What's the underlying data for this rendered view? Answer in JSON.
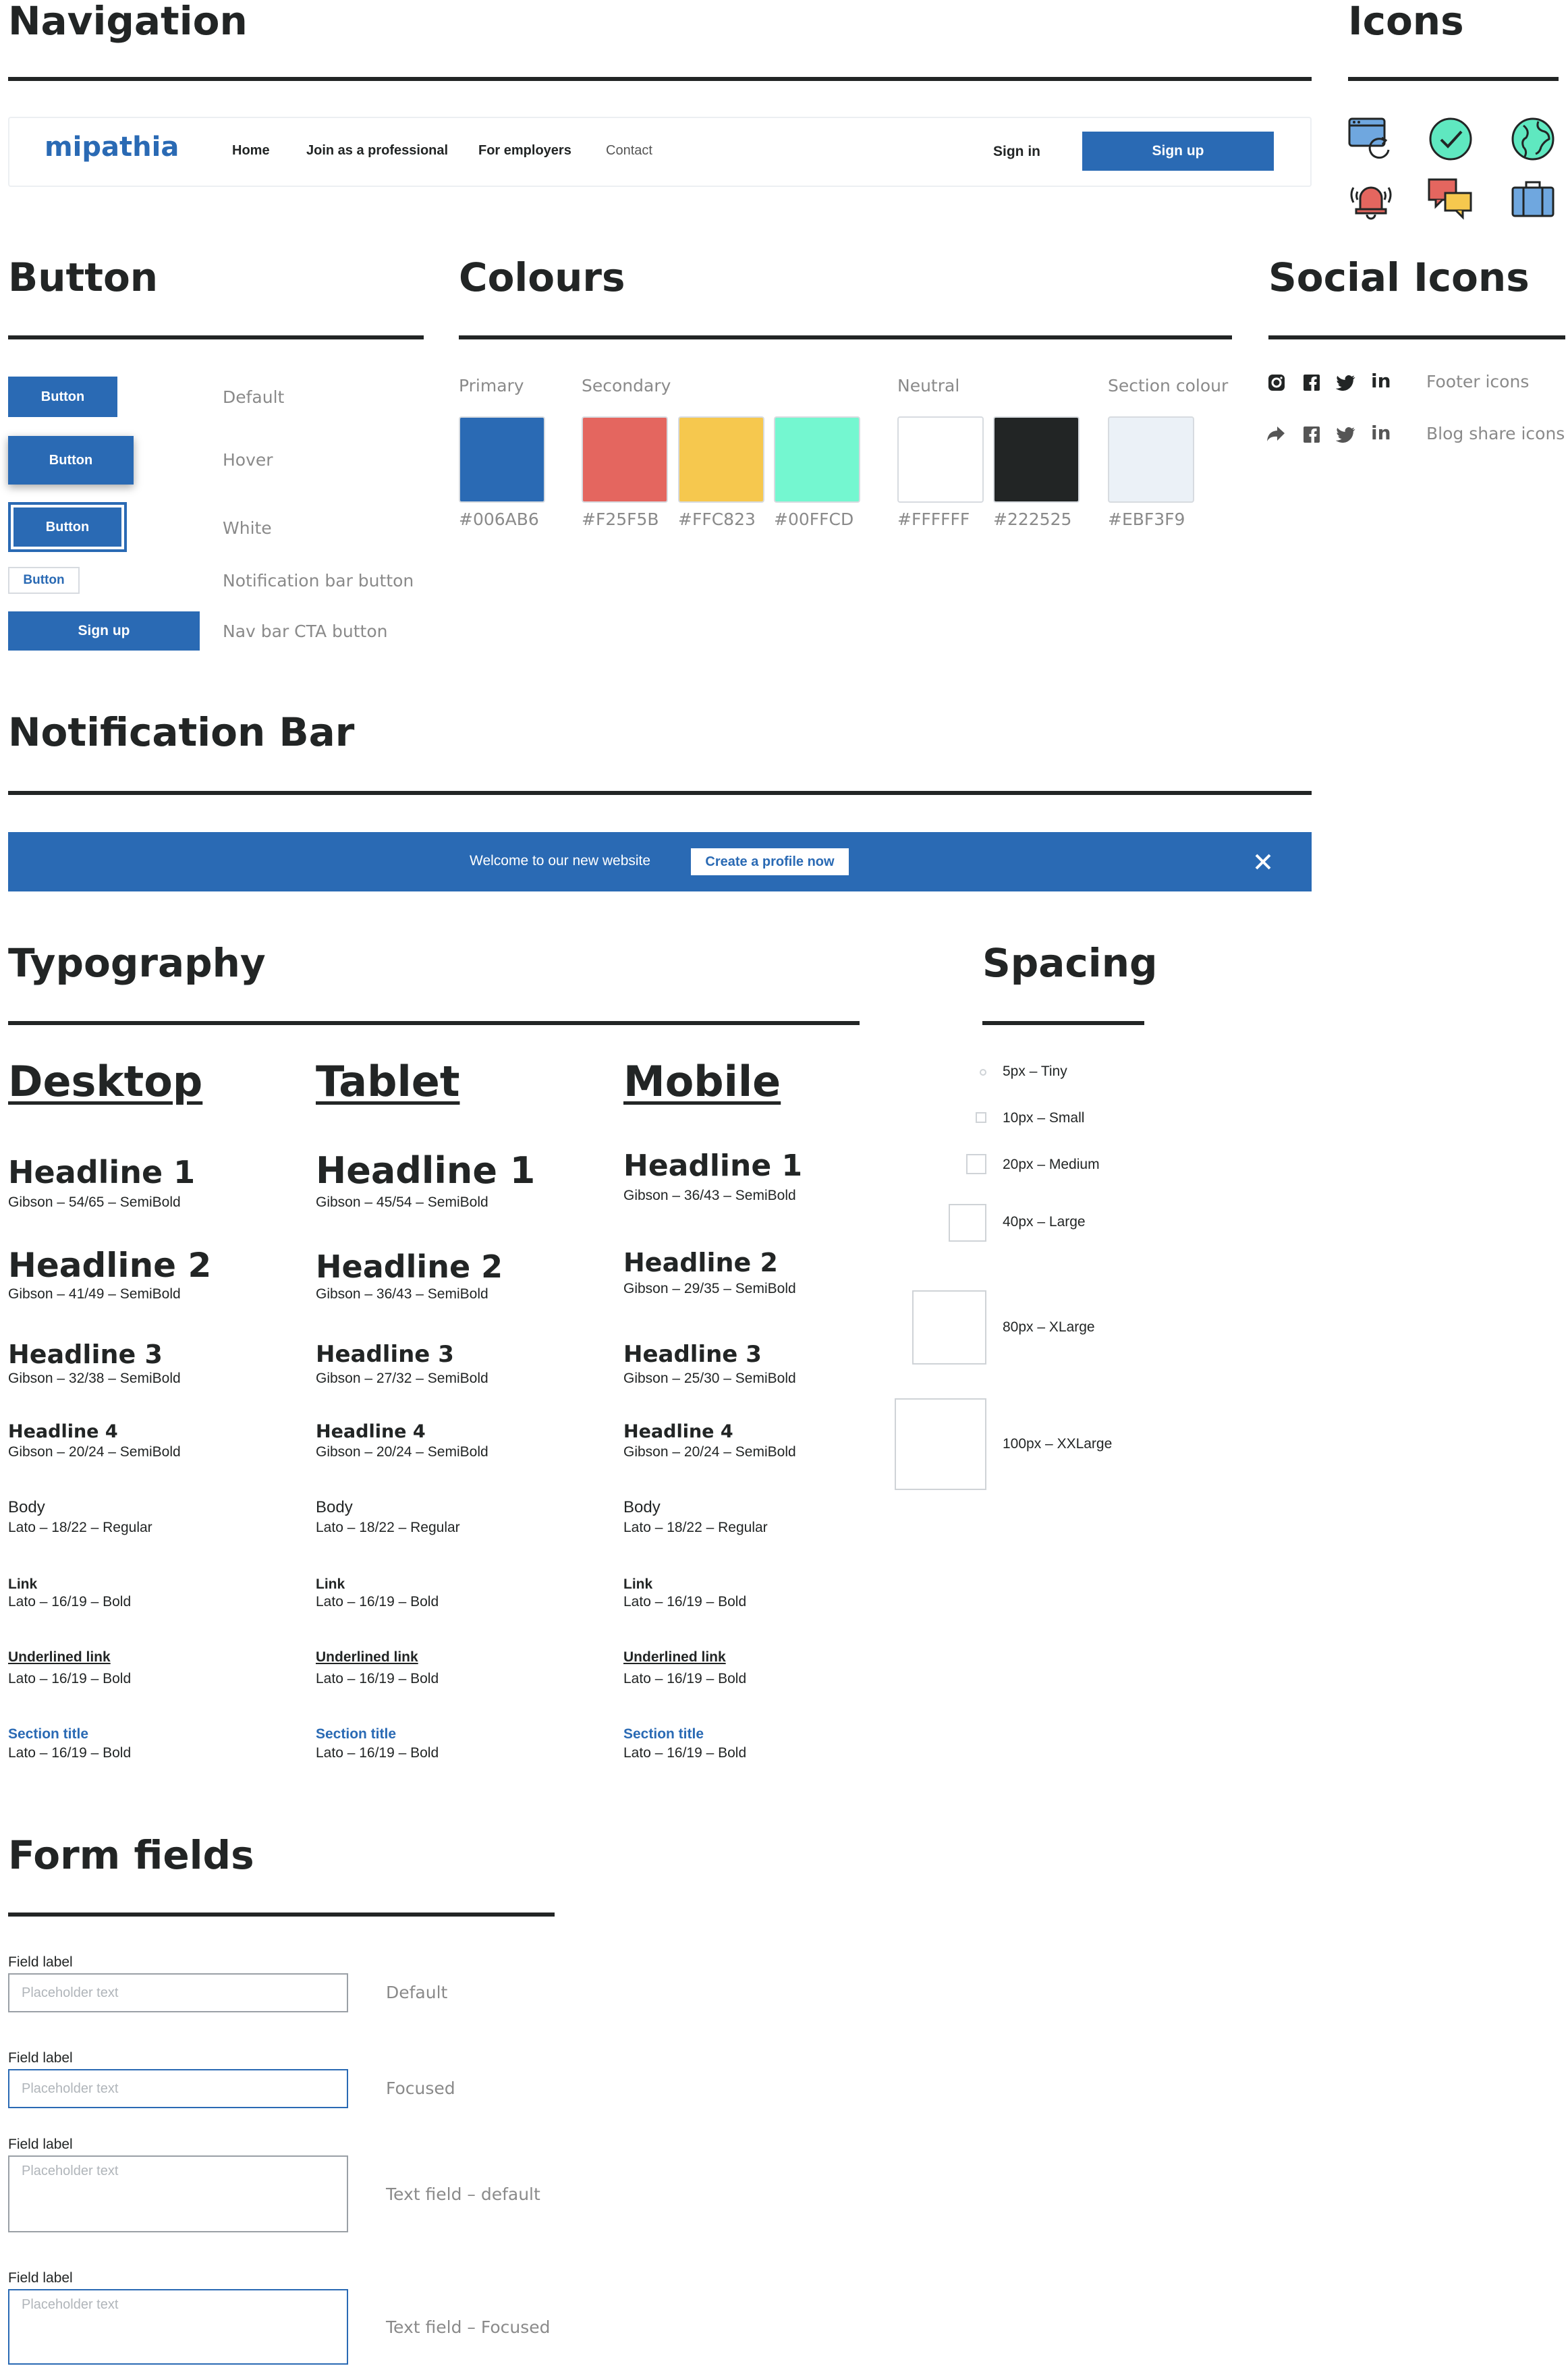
{
  "sections": {
    "navigation": "Navigation",
    "icons": "Icons",
    "button": "Button",
    "colours": "Colours",
    "social_icons": "Social Icons",
    "notification_bar": "Notification Bar",
    "typography": "Typography",
    "spacing": "Spacing",
    "form_fields": "Form fields"
  },
  "nav": {
    "logo": "mipathia",
    "links": [
      "Home",
      "Join as a professional",
      "For employers",
      "Contact"
    ],
    "sign_in": "Sign in",
    "sign_up": "Sign up"
  },
  "icons": [
    "browser-refresh-icon",
    "check-circle-icon",
    "globe-icon",
    "alarm-bell-icon",
    "chat-bubbles-icon",
    "briefcase-icon"
  ],
  "buttons": {
    "items": [
      {
        "label": "Button",
        "desc": "Default"
      },
      {
        "label": "Button",
        "desc": "Hover"
      },
      {
        "label": "Button",
        "desc": "White"
      },
      {
        "label": "Button",
        "desc": "Notification bar button"
      },
      {
        "label": "Sign up",
        "desc": "Nav bar CTA button"
      }
    ]
  },
  "colours": {
    "groups": {
      "primary": "Primary",
      "secondary": "Secondary",
      "neutral": "Neutral",
      "section": "Section colour"
    },
    "swatches": [
      {
        "hex": "#006AB6",
        "color": "#2a6ab4"
      },
      {
        "hex": "#F25F5B",
        "color": "#e4665f"
      },
      {
        "hex": "#FFC823",
        "color": "#f6c84e"
      },
      {
        "hex": "#00FFCD",
        "color": "#74f7d0"
      },
      {
        "hex": "#FFFFFF",
        "color": "#ffffff"
      },
      {
        "hex": "#222525",
        "color": "#222525"
      },
      {
        "hex": "#EBF3F9",
        "color": "#ebf1f7"
      }
    ]
  },
  "social": {
    "footer_label": "Footer icons",
    "blog_label": "Blog share icons"
  },
  "notification": {
    "text": "Welcome to our new website",
    "button": "Create a profile now"
  },
  "typography": {
    "columns": [
      {
        "heading": "Desktop",
        "h1": "Headline 1",
        "h1_spec": "Gibson – 54/65 – SemiBold",
        "h2": "Headline 2",
        "h2_spec": "Gibson – 41/49 – SemiBold",
        "h3": "Headline 3",
        "h3_spec": "Gibson – 32/38 – SemiBold",
        "h4": "Headline 4",
        "h4_spec": "Gibson – 20/24 – SemiBold",
        "body": "Body",
        "body_spec": "Lato – 18/22 – Regular",
        "link": "Link",
        "link_spec": "Lato – 16/19 – Bold",
        "ulink": "Underlined link",
        "ulink_spec": "Lato – 16/19 – Bold",
        "section": "Section title",
        "section_spec": "Lato – 16/19 – Bold"
      },
      {
        "heading": "Tablet",
        "h1": "Headline 1",
        "h1_spec": "Gibson – 45/54 – SemiBold",
        "h2": "Headline 2",
        "h2_spec": "Gibson – 36/43 – SemiBold",
        "h3": "Headline 3",
        "h3_spec": "Gibson – 27/32 – SemiBold",
        "h4": "Headline 4",
        "h4_spec": "Gibson – 20/24 – SemiBold",
        "body": "Body",
        "body_spec": "Lato – 18/22 – Regular",
        "link": "Link",
        "link_spec": "Lato – 16/19 – Bold",
        "ulink": "Underlined link",
        "ulink_spec": "Lato – 16/19 – Bold",
        "section": "Section title",
        "section_spec": "Lato – 16/19 – Bold"
      },
      {
        "heading": "Mobile",
        "h1": "Headline 1",
        "h1_spec": "Gibson – 36/43 – SemiBold",
        "h2": "Headline 2",
        "h2_spec": "Gibson – 29/35 – SemiBold",
        "h3": "Headline 3",
        "h3_spec": "Gibson – 25/30 – SemiBold",
        "h4": "Headline 4",
        "h4_spec": "Gibson – 20/24 – SemiBold",
        "body": "Body",
        "body_spec": "Lato – 18/22 – Regular",
        "link": "Link",
        "link_spec": "Lato – 16/19 – Bold",
        "ulink": "Underlined link",
        "ulink_spec": "Lato – 16/19 – Bold",
        "section": "Section title",
        "section_spec": "Lato – 16/19 – Bold"
      }
    ]
  },
  "spacing": {
    "items": [
      {
        "label": "5px – Tiny"
      },
      {
        "label": "10px – Small"
      },
      {
        "label": "20px – Medium"
      },
      {
        "label": "40px – Large"
      },
      {
        "label": "80px – XLarge"
      },
      {
        "label": "100px – XXLarge"
      }
    ]
  },
  "form": {
    "fields": [
      {
        "label": "Field label",
        "placeholder": "Placeholder text",
        "desc": "Default"
      },
      {
        "label": "Field label",
        "placeholder": "Placeholder text",
        "desc": "Focused"
      },
      {
        "label": "Field label",
        "placeholder": "Placeholder text",
        "desc": "Text field – default"
      },
      {
        "label": "Field label",
        "placeholder": "Placeholder text",
        "desc": "Text field – Focused"
      }
    ]
  }
}
